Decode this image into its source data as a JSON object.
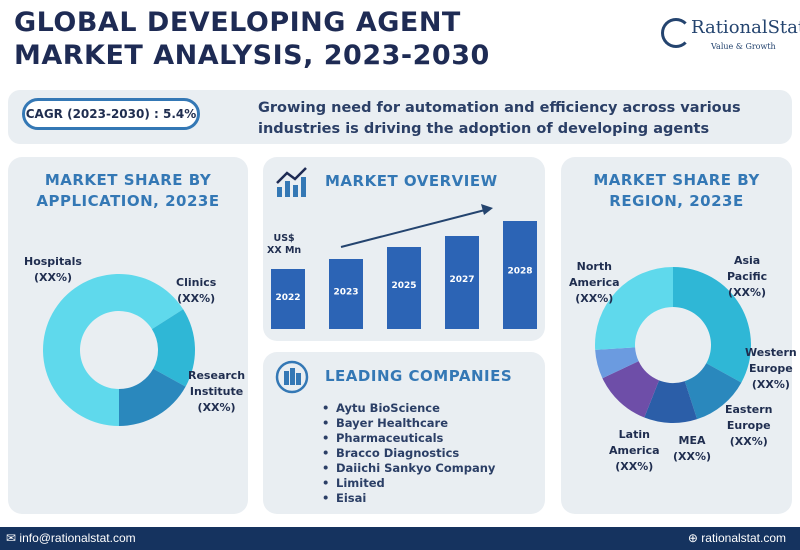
{
  "header": {
    "title_line1": "GLOBAL DEVELOPING AGENT",
    "title_line2": "MARKET ANALYSIS, 2023-2030",
    "logo_name": "RationalStat",
    "logo_tagline": "Value & Growth"
  },
  "summary": {
    "cagr": "CAGR (2023-2030) : 5.4%",
    "driver": "Growing need for automation and efficiency across various industries is driving the adoption of developing agents"
  },
  "application_panel": {
    "title_line1": "MARKET SHARE BY",
    "title_line2": "APPLICATION, 2023E"
  },
  "overview_panel": {
    "title": "MARKET OVERVIEW"
  },
  "region_panel": {
    "title_line1": "MARKET SHARE BY",
    "title_line2": "REGION, 2023E"
  },
  "companies_panel": {
    "title": "LEADING COMPANIES",
    "items": [
      "Aytu BioScience",
      "Bayer Healthcare",
      "Pharmaceuticals",
      "Bracco Diagnostics",
      "Daiichi Sankyo Company",
      "Limited",
      "Eisai"
    ]
  },
  "footer": {
    "email": "info@rationalstat.com",
    "website": "rationalstat.com"
  },
  "colors": {
    "navy": "#1e2b54",
    "accent_blue": "#3478b5",
    "panel_bg": "#e9eef2",
    "bar_blue": "#2c64b5",
    "footer_bg": "#15335f"
  },
  "chart_data": [
    {
      "type": "pie",
      "variant": "donut",
      "labels": [
        "Hospitals (XX%)",
        "Clinics (XX%)",
        "Research Institute (XX%)"
      ],
      "label_lines": [
        [
          "Hospitals",
          "(XX%)"
        ],
        [
          "Clinics",
          "(XX%)"
        ],
        [
          "Research",
          "Institute",
          "(XX%)"
        ]
      ],
      "values": [
        66,
        17,
        17
      ],
      "colors": [
        "#5fd9ec",
        "#2fb7d6",
        "#2a88bd"
      ]
    },
    {
      "type": "bar",
      "categories": [
        "2022",
        "2023",
        "2025",
        "2027",
        "2028"
      ],
      "values": [
        60,
        70,
        82,
        93,
        108
      ],
      "ylabel_lines": [
        "US$",
        "XX Mn"
      ],
      "ylim": [
        0,
        108
      ],
      "trend_arrow": true
    },
    {
      "type": "pie",
      "variant": "donut",
      "labels": [
        "Asia Pacific (XX%)",
        "Western Europe (XX%)",
        "Eastern Europe (XX%)",
        "MEA (XX%)",
        "Latin America (XX%)",
        "North America (XX%)"
      ],
      "label_lines": [
        [
          "Asia",
          "Pacific",
          "(XX%)"
        ],
        [
          "Western",
          "Europe",
          "(XX%)"
        ],
        [
          "Eastern",
          "Europe",
          "(XX%)"
        ],
        [
          "MEA",
          "(XX%)"
        ],
        [
          "Latin",
          "America",
          "(XX%)"
        ],
        [
          "North",
          "America",
          "(XX%)"
        ]
      ],
      "values": [
        33,
        12,
        11,
        12,
        6,
        26
      ],
      "colors": [
        "#2fb7d6",
        "#2a88bd",
        "#2b5ea8",
        "#6e4ea8",
        "#6b9be0",
        "#5fd9ec"
      ]
    }
  ]
}
